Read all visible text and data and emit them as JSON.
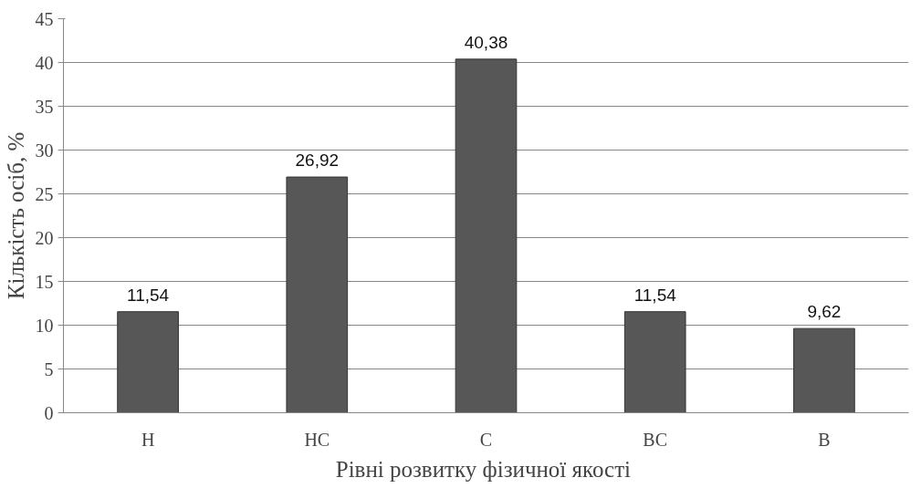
{
  "chart_data": {
    "type": "bar",
    "xlabel": "Рівні розвитку  фізичної якості",
    "ylabel": "Кількість осіб, %",
    "categories": [
      "Н",
      "НС",
      "С",
      "ВС",
      "В"
    ],
    "values": [
      11.54,
      26.92,
      40.38,
      11.54,
      9.62
    ],
    "value_labels": [
      "11,54",
      "26,92",
      "40,38",
      "11,54",
      "9,62"
    ],
    "color": "#575757",
    "ylim": [
      0,
      45
    ],
    "yticks": [
      0,
      5,
      10,
      15,
      20,
      25,
      30,
      35,
      40,
      45
    ],
    "grid": "y"
  }
}
